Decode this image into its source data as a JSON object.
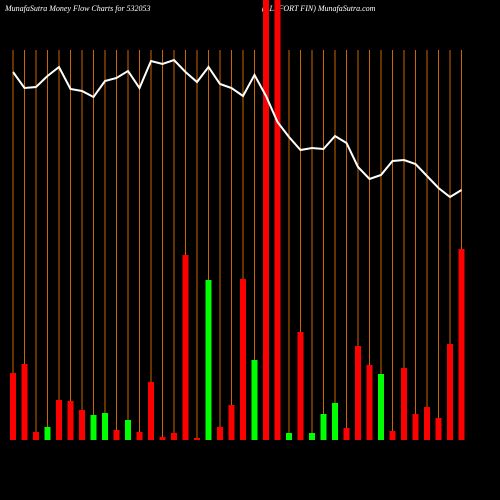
{
  "chart_data": {
    "type": "bar",
    "title": "MunafaSutra  Money Flow  Charts for 532053",
    "subtitle": "(ALLFORT FIN) MunafaSutra.com",
    "categories": [
      null,
      null,
      null,
      null,
      null,
      null,
      null,
      null,
      null,
      null,
      null,
      null,
      null,
      null,
      null,
      null,
      null,
      null,
      null,
      null,
      null,
      null,
      null,
      null,
      null,
      null,
      null,
      null,
      null,
      null,
      null,
      null,
      null,
      null,
      null,
      null,
      null,
      null,
      null,
      null
    ],
    "values": [
      67,
      76,
      8,
      13,
      40,
      39,
      30,
      25,
      27,
      10,
      20,
      8,
      58,
      3,
      7,
      185,
      2,
      160,
      13,
      35,
      161,
      80,
      450,
      450,
      7,
      108,
      7,
      26,
      37,
      12,
      94,
      75,
      66,
      9,
      72,
      26,
      33,
      22,
      96,
      191
    ],
    "colors": [
      "#ff0000",
      "#ff0000",
      "#ff0000",
      "#00ff00",
      "#ff0000",
      "#ff0000",
      "#ff0000",
      "#00ff00",
      "#00ff00",
      "#ff0000",
      "#00ff00",
      "#ff0000",
      "#ff0000",
      "#ff0000",
      "#ff0000",
      "#ff0000",
      "#ff0000",
      "#00ff00",
      "#ff0000",
      "#ff0000",
      "#ff0000",
      "#00ff00",
      "#ff0000",
      "#ff0000",
      "#00ff00",
      "#ff0000",
      "#00ff00",
      "#00ff00",
      "#00ff00",
      "#ff0000",
      "#ff0000",
      "#ff0000",
      "#00ff00",
      "#ff0000",
      "#ff0000",
      "#ff0000",
      "#ff0000",
      "#ff0000",
      "#ff0000",
      "#ff0000"
    ],
    "line": {
      "color": "#ffffff",
      "values": [
        368,
        352,
        353,
        364,
        373,
        351,
        349,
        343,
        359,
        362,
        369,
        352,
        379,
        376,
        380,
        368,
        358,
        373,
        356,
        352,
        344,
        365,
        344,
        318,
        303,
        290,
        292,
        291,
        304,
        297,
        273,
        261,
        265,
        279,
        280,
        276,
        264,
        252,
        243,
        250
      ]
    },
    "guide_color": "#cc6600",
    "ylim": [
      0,
      440
    ]
  }
}
